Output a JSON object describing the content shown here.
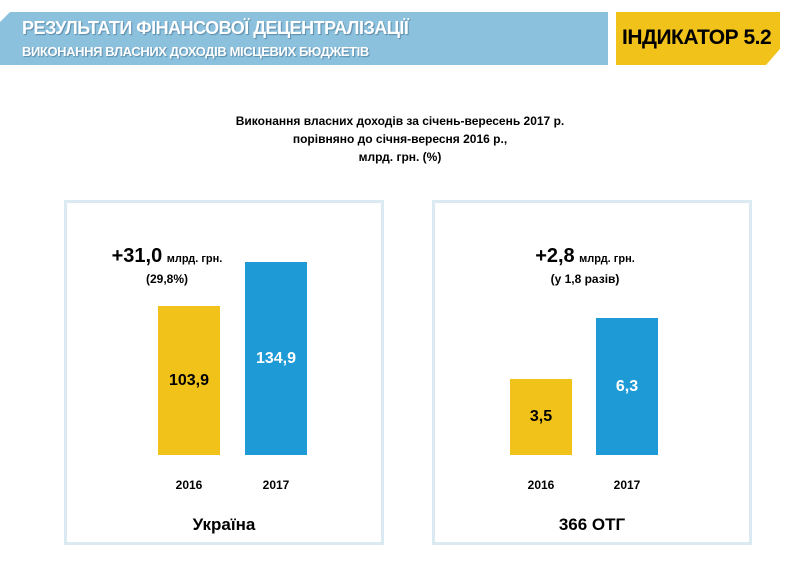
{
  "header": {
    "title": "РЕЗУЛЬТАТИ ФІНАНСОВОЇ ДЕЦЕНТРАЛІЗАЦІЇ",
    "subtitle": "ВИКОНАННЯ ВЛАСНИХ ДОХОДІВ МІСЦЕВИХ БЮДЖЕТІВ",
    "indicator": "ІНДИКАТОР 5.2"
  },
  "colors": {
    "banner": "#8cc1de",
    "yellow": "#f0c21a",
    "blue": "#1e9ad6"
  },
  "chart_data": {
    "type": "bar",
    "title": [
      "Виконання власних доходів за січень-вересень 2017 р.",
      "порівняно до січня-вересня 2016 р.,",
      "млрд. грн. (%)"
    ],
    "panels": [
      {
        "name": "Україна",
        "categories": [
          "2016",
          "2017"
        ],
        "values": [
          103.9,
          134.9
        ],
        "labels": [
          "103,9",
          "134,9"
        ],
        "annotation": {
          "value": "+31,0",
          "unit": "млрд. грн.",
          "sub": "(29,8%)"
        }
      },
      {
        "name": "366 ОТГ",
        "categories": [
          "2016",
          "2017"
        ],
        "values": [
          3.5,
          6.3
        ],
        "labels": [
          "3,5",
          "6,3"
        ],
        "annotation": {
          "value": "+2,8",
          "unit": "млрд. грн.",
          "sub": "(у 1,8 разів)"
        }
      }
    ]
  }
}
